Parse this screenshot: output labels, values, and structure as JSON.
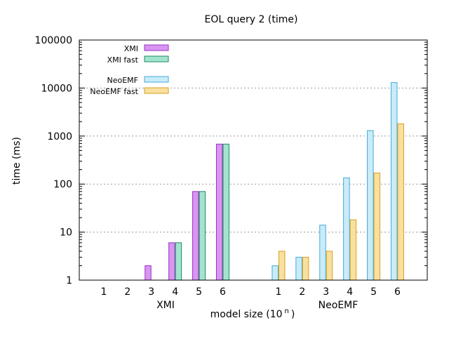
{
  "chart_data": {
    "type": "bar",
    "title": "EOL query 2 (time)",
    "ylabel": "time (ms)",
    "xlabel_main": "model size (10",
    "xlabel_sup": "n",
    "xlabel_close": ")",
    "y_scale": "log",
    "ylim": [
      1,
      100000
    ],
    "y_ticks": [
      "1",
      "10",
      "100",
      "1000",
      "10000",
      "100000"
    ],
    "groups": [
      {
        "label": "XMI",
        "categories": [
          "1",
          "2",
          "3",
          "4",
          "5",
          "6"
        ],
        "series": [
          {
            "name": "XMI",
            "color": "#d896f0",
            "stroke": "#9b30c8",
            "values": [
              null,
              null,
              2,
              6,
              70,
              680
            ]
          },
          {
            "name": "XMI fast",
            "color": "#a3e4cf",
            "stroke": "#1f8a63",
            "values": [
              null,
              null,
              null,
              6,
              70,
              680
            ]
          }
        ]
      },
      {
        "label": "NeoEMF",
        "categories": [
          "1",
          "2",
          "3",
          "4",
          "5",
          "6"
        ],
        "series": [
          {
            "name": "NeoEMF",
            "color": "#c8ecf8",
            "stroke": "#4aa8d8",
            "values": [
              2,
              3,
              14,
              135,
              1300,
              13000
            ]
          },
          {
            "name": "NeoEMF fast",
            "color": "#f8e0a0",
            "stroke": "#d8a020",
            "values": [
              4,
              3,
              4,
              18,
              170,
              1800
            ]
          }
        ]
      }
    ],
    "legend": [
      "XMI",
      "XMI fast",
      "NeoEMF",
      "NeoEMF fast"
    ],
    "legend_position": "top-left",
    "grid": "horizontal-dotted"
  }
}
